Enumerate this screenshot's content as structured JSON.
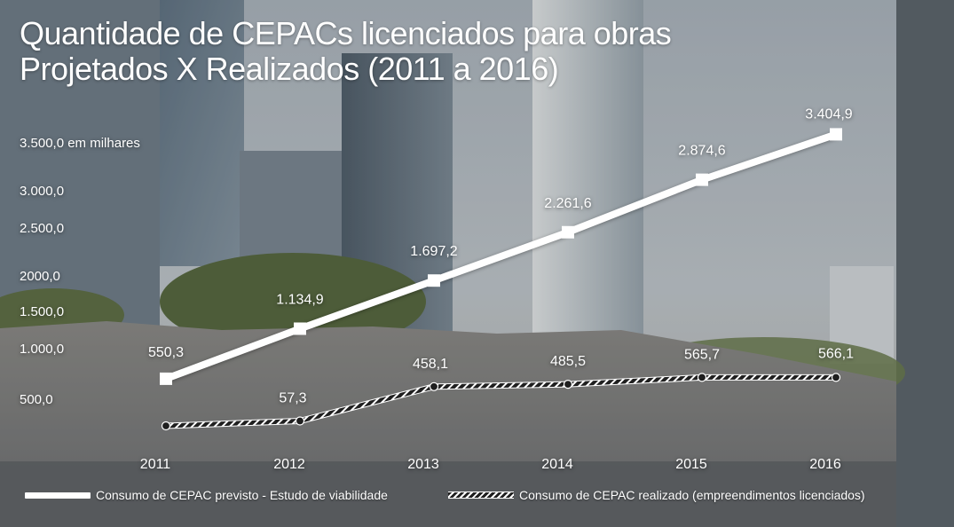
{
  "title_lines": [
    "Quantidade de CEPACs licenciados para obras",
    "Projetados X Realizados (2011 a 2016)"
  ],
  "legend": {
    "previsto": "Consumo  de CEPAC previsto - Estudo de viabilidade",
    "realizado": "Consumo de CEPAC realizado (empreendimentos licenciados)"
  },
  "colors": {
    "previsto_line": "#ffffff",
    "realizado_line": "#1f1f1f",
    "text": "#ffffff"
  },
  "chart_data": {
    "type": "line",
    "title": "Quantidade de CEPACs licenciados para obras Projetados X Realizados (2011 a 2016)",
    "x": [
      "2011",
      "2012",
      "2013",
      "2014",
      "2015",
      "2016"
    ],
    "y_unit_label": "3.500,0 em milhares",
    "y_tick_labels": [
      "500,0",
      "1.000,0",
      "1.500,0",
      "2000,0",
      "2.500,0",
      "3.000,0",
      "3.500,0 em milhares"
    ],
    "y_ticks": [
      500,
      1000,
      1500,
      2000,
      2500,
      3000,
      3500
    ],
    "ylim": [
      0,
      3500
    ],
    "grid": false,
    "legend_position": "bottom",
    "series": [
      {
        "name": "Consumo  de CEPAC previsto - Estudo de viabilidade",
        "values": [
          550.3,
          1134.9,
          1697.2,
          2261.6,
          2874.6,
          3404.9
        ],
        "labels": [
          "550,3",
          "1.134,9",
          "1.697,2",
          "2.261,6",
          "2.874,6",
          "3.404,9"
        ]
      },
      {
        "name": "Consumo de CEPAC realizado (empreendimentos licenciados)",
        "values": [
          0,
          57.3,
          458.1,
          485.5,
          565.7,
          566.1
        ],
        "labels": [
          "",
          "57,3",
          "458,1",
          "485,5",
          "565,7",
          "566,1"
        ]
      }
    ]
  }
}
